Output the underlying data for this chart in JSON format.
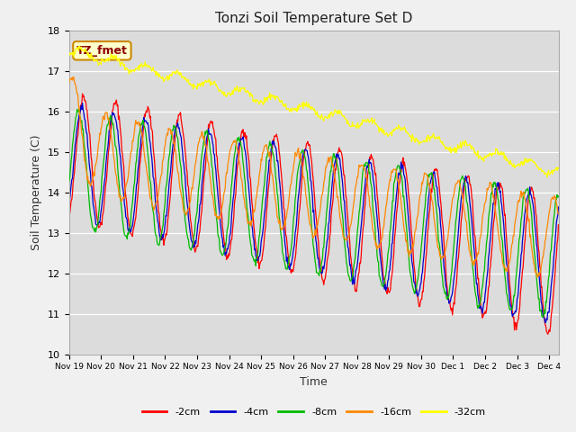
{
  "title": "Tonzi Soil Temperature Set D",
  "xlabel": "Time",
  "ylabel": "Soil Temperature (C)",
  "ylim": [
    10.0,
    18.0
  ],
  "xlim_days": [
    0,
    15.3
  ],
  "annotation": "TZ_fmet",
  "fig_bg": "#f0f0f0",
  "plot_bg": "#dcdcdc",
  "x_tick_labels": [
    "Nov 19",
    "Nov 20",
    "Nov 21",
    "Nov 22",
    "Nov 23",
    "Nov 24",
    "Nov 25",
    "Nov 26",
    "Nov 27",
    "Nov 28",
    "Nov 29",
    "Nov 30",
    "Dec 1",
    "Dec 2",
    "Dec 3",
    "Dec 4"
  ],
  "x_tick_positions": [
    0,
    1,
    2,
    3,
    4,
    5,
    6,
    7,
    8,
    9,
    10,
    11,
    12,
    13,
    14,
    15
  ],
  "legend_labels": [
    "-2cm",
    "-4cm",
    "-8cm",
    "-16cm",
    "-32cm"
  ],
  "legend_colors": [
    "#ff0000",
    "#0000cc",
    "#00bb00",
    "#ff8800",
    "#ffff00"
  ],
  "series_colors": [
    "#ff0000",
    "#0000cc",
    "#00bb00",
    "#ff8800",
    "#ffff00"
  ]
}
